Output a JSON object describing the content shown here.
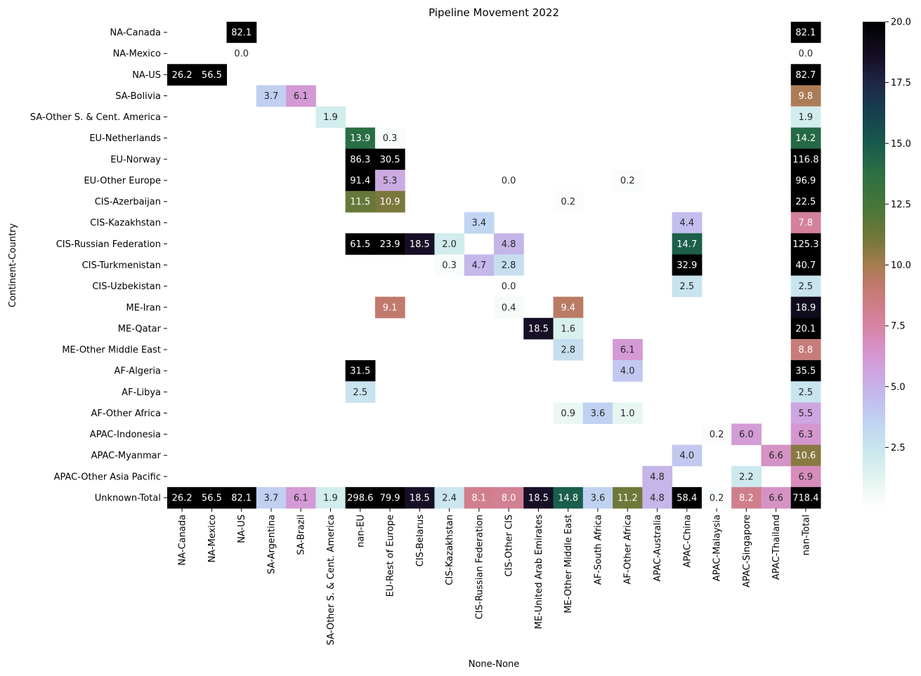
{
  "chart_data": {
    "type": "heatmap",
    "title": "Pipeline Movement 2022",
    "xlabel": "None-None",
    "ylabel": "Continent-Country",
    "colormap": "cubehelix_r",
    "vmin": 0,
    "vmax": 20,
    "colorbar_ticks": [
      2.5,
      5.0,
      7.5,
      10.0,
      12.5,
      15.0,
      17.5,
      20.0
    ],
    "colorbar_tick_labels": [
      "2.5",
      "5.0",
      "7.5",
      "10.0",
      "12.5",
      "15.0",
      "17.5",
      "20.0"
    ],
    "columns": [
      "NA-Canada",
      "NA-Mexico",
      "NA-US",
      "SA-Argentina",
      "SA-Brazil",
      "SA-Other S. & Cent. America",
      "nan-EU",
      "EU-Rest of Europe",
      "CIS-Belarus",
      "CIS-Kazakhstan",
      "CIS-Russian Federation",
      "CIS-Other CIS",
      "ME-United Arab Emirates",
      "ME-Other Middle East",
      "AF-South Africa",
      "AF-Other Africa",
      "APAC-Australia",
      "APAC-China",
      "APAC-Malaysia",
      "APAC-Singapore",
      "APAC-Thailand",
      "nan-Total"
    ],
    "rows": [
      "NA-Canada",
      "NA-Mexico",
      "NA-US",
      "SA-Bolivia",
      "SA-Other S. & Cent. America",
      "EU-Netherlands",
      "EU-Norway",
      "EU-Other Europe",
      "CIS-Azerbaijan",
      "CIS-Kazakhstan",
      "CIS-Russian Federation",
      "CIS-Turkmenistan",
      "CIS-Uzbekistan",
      "ME-Iran",
      "ME-Qatar",
      "ME-Other Middle East",
      "AF-Algeria",
      "AF-Libya",
      "AF-Other Africa",
      "APAC-Indonesia",
      "APAC-Myanmar",
      "APAC-Other Asia Pacific",
      "Unknown-Total"
    ],
    "values": [
      [
        null,
        null,
        82.1,
        null,
        null,
        null,
        null,
        null,
        null,
        null,
        null,
        null,
        null,
        null,
        null,
        null,
        null,
        null,
        null,
        null,
        null,
        82.1
      ],
      [
        null,
        null,
        0.0,
        null,
        null,
        null,
        null,
        null,
        null,
        null,
        null,
        null,
        null,
        null,
        null,
        null,
        null,
        null,
        null,
        null,
        null,
        0.0
      ],
      [
        26.2,
        56.5,
        null,
        null,
        null,
        null,
        null,
        null,
        null,
        null,
        null,
        null,
        null,
        null,
        null,
        null,
        null,
        null,
        null,
        null,
        null,
        82.7
      ],
      [
        null,
        null,
        null,
        3.7,
        6.1,
        null,
        null,
        null,
        null,
        null,
        null,
        null,
        null,
        null,
        null,
        null,
        null,
        null,
        null,
        null,
        null,
        9.8
      ],
      [
        null,
        null,
        null,
        null,
        null,
        1.9,
        null,
        null,
        null,
        null,
        null,
        null,
        null,
        null,
        null,
        null,
        null,
        null,
        null,
        null,
        null,
        1.9
      ],
      [
        null,
        null,
        null,
        null,
        null,
        null,
        13.9,
        0.3,
        null,
        null,
        null,
        null,
        null,
        null,
        null,
        null,
        null,
        null,
        null,
        null,
        null,
        14.2
      ],
      [
        null,
        null,
        null,
        null,
        null,
        null,
        86.3,
        30.5,
        null,
        null,
        null,
        null,
        null,
        null,
        null,
        null,
        null,
        null,
        null,
        null,
        null,
        116.8
      ],
      [
        null,
        null,
        null,
        null,
        null,
        null,
        91.4,
        5.3,
        null,
        null,
        null,
        0.0,
        null,
        null,
        null,
        0.2,
        null,
        null,
        null,
        null,
        null,
        96.9
      ],
      [
        null,
        null,
        null,
        null,
        null,
        null,
        11.5,
        10.9,
        null,
        null,
        null,
        null,
        null,
        0.2,
        null,
        null,
        null,
        null,
        null,
        null,
        null,
        22.5
      ],
      [
        null,
        null,
        null,
        null,
        null,
        null,
        null,
        null,
        null,
        null,
        3.4,
        null,
        null,
        null,
        null,
        null,
        null,
        4.4,
        null,
        null,
        null,
        7.8
      ],
      [
        null,
        null,
        null,
        null,
        null,
        null,
        61.5,
        23.9,
        18.5,
        2.0,
        null,
        4.8,
        null,
        null,
        null,
        null,
        null,
        14.7,
        null,
        null,
        null,
        125.3
      ],
      [
        null,
        null,
        null,
        null,
        null,
        null,
        null,
        null,
        null,
        0.3,
        4.7,
        2.8,
        null,
        null,
        null,
        null,
        null,
        32.9,
        null,
        null,
        null,
        40.7
      ],
      [
        null,
        null,
        null,
        null,
        null,
        null,
        null,
        null,
        null,
        null,
        null,
        0.0,
        null,
        null,
        null,
        null,
        null,
        2.5,
        null,
        null,
        null,
        2.5
      ],
      [
        null,
        null,
        null,
        null,
        null,
        null,
        null,
        9.1,
        null,
        null,
        null,
        0.4,
        null,
        9.4,
        null,
        null,
        null,
        null,
        null,
        null,
        null,
        18.9
      ],
      [
        null,
        null,
        null,
        null,
        null,
        null,
        null,
        null,
        null,
        null,
        null,
        null,
        18.5,
        1.6,
        null,
        null,
        null,
        null,
        null,
        null,
        null,
        20.1
      ],
      [
        null,
        null,
        null,
        null,
        null,
        null,
        null,
        null,
        null,
        null,
        null,
        null,
        null,
        2.8,
        null,
        6.1,
        null,
        null,
        null,
        null,
        null,
        8.8
      ],
      [
        null,
        null,
        null,
        null,
        null,
        null,
        31.5,
        null,
        null,
        null,
        null,
        null,
        null,
        null,
        null,
        4.0,
        null,
        null,
        null,
        null,
        null,
        35.5
      ],
      [
        null,
        null,
        null,
        null,
        null,
        null,
        2.5,
        null,
        null,
        null,
        null,
        null,
        null,
        null,
        null,
        null,
        null,
        null,
        null,
        null,
        null,
        2.5
      ],
      [
        null,
        null,
        null,
        null,
        null,
        null,
        null,
        null,
        null,
        null,
        null,
        null,
        null,
        0.9,
        3.6,
        1.0,
        null,
        null,
        null,
        null,
        null,
        5.5
      ],
      [
        null,
        null,
        null,
        null,
        null,
        null,
        null,
        null,
        null,
        null,
        null,
        null,
        null,
        null,
        null,
        null,
        null,
        null,
        0.2,
        6.0,
        null,
        6.3
      ],
      [
        null,
        null,
        null,
        null,
        null,
        null,
        null,
        null,
        null,
        null,
        null,
        null,
        null,
        null,
        null,
        null,
        null,
        4.0,
        null,
        null,
        6.6,
        10.6
      ],
      [
        null,
        null,
        null,
        null,
        null,
        null,
        null,
        null,
        null,
        null,
        null,
        null,
        null,
        null,
        null,
        null,
        4.8,
        null,
        null,
        2.2,
        null,
        6.9
      ],
      [
        26.2,
        56.5,
        82.1,
        3.7,
        6.1,
        1.9,
        298.6,
        79.9,
        18.5,
        2.4,
        8.1,
        8.0,
        18.5,
        14.8,
        3.6,
        11.2,
        4.8,
        58.4,
        0.2,
        8.2,
        6.6,
        718.4
      ]
    ]
  }
}
